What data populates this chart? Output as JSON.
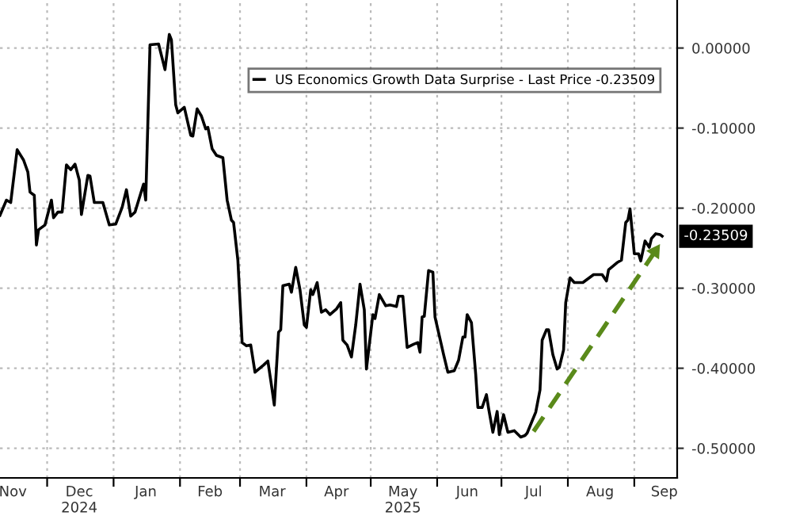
{
  "chart_data": {
    "type": "line",
    "series": [
      {
        "name": "US Economics Growth Data Surprise - Last Price -0.23509",
        "color": "#000000",
        "x": [
          "2024-11-09",
          "2024-11-12",
          "2024-11-14",
          "2024-11-17",
          "2024-11-20",
          "2024-11-22",
          "2024-11-23",
          "2024-11-25",
          "2024-11-26",
          "2024-11-27",
          "2024-11-30",
          "2024-12-03",
          "2024-12-04",
          "2024-12-06",
          "2024-12-08",
          "2024-12-10",
          "2024-12-12",
          "2024-12-14",
          "2024-12-16",
          "2024-12-17",
          "2024-12-20",
          "2024-12-21",
          "2024-12-23",
          "2024-12-27",
          "2024-12-30",
          "2025-01-02",
          "2025-01-05",
          "2025-01-07",
          "2025-01-09",
          "2025-01-11",
          "2025-01-15",
          "2025-01-16",
          "2025-01-18",
          "2025-01-22",
          "2025-01-25",
          "2025-01-27",
          "2025-01-28",
          "2025-01-30",
          "2025-01-31",
          "2025-02-03",
          "2025-02-06",
          "2025-02-07",
          "2025-02-09",
          "2025-02-11",
          "2025-02-13",
          "2025-02-14",
          "2025-02-16",
          "2025-02-18",
          "2025-02-21",
          "2025-02-23",
          "2025-02-25",
          "2025-02-26",
          "2025-02-28",
          "2025-03-02",
          "2025-03-04",
          "2025-03-06",
          "2025-03-08",
          "2025-03-12",
          "2025-03-14",
          "2025-03-16",
          "2025-03-17",
          "2025-03-19",
          "2025-03-20",
          "2025-03-21",
          "2025-03-24",
          "2025-03-25",
          "2025-03-27",
          "2025-03-29",
          "2025-03-31",
          "2025-04-01",
          "2025-04-03",
          "2025-04-04",
          "2025-04-06",
          "2025-04-08",
          "2025-04-10",
          "2025-04-12",
          "2025-04-15",
          "2025-04-17",
          "2025-04-18",
          "2025-04-20",
          "2025-04-22",
          "2025-04-24",
          "2025-04-26",
          "2025-04-28",
          "2025-04-29",
          "2025-05-02",
          "2025-05-03",
          "2025-05-05",
          "2025-05-08",
          "2025-05-10",
          "2025-05-13",
          "2025-05-14",
          "2025-05-16",
          "2025-05-18",
          "2025-05-21",
          "2025-05-23",
          "2025-05-24",
          "2025-05-25",
          "2025-05-26",
          "2025-05-28",
          "2025-05-30",
          "2025-05-31",
          "2025-06-03",
          "2025-06-04",
          "2025-06-06",
          "2025-06-09",
          "2025-06-11",
          "2025-06-13",
          "2025-06-14",
          "2025-06-15",
          "2025-06-17",
          "2025-06-19",
          "2025-06-20",
          "2025-06-22",
          "2025-06-24",
          "2025-06-25",
          "2025-06-27",
          "2025-06-29",
          "2025-06-30",
          "2025-07-02",
          "2025-07-04",
          "2025-07-07",
          "2025-07-10",
          "2025-07-12",
          "2025-07-13",
          "2025-07-15",
          "2025-07-17",
          "2025-07-19",
          "2025-07-20",
          "2025-07-22",
          "2025-07-23",
          "2025-07-25",
          "2025-07-27",
          "2025-07-28",
          "2025-07-30",
          "2025-07-31",
          "2025-08-02",
          "2025-08-04",
          "2025-08-08",
          "2025-08-13",
          "2025-08-17",
          "2025-08-19",
          "2025-08-20",
          "2025-08-24",
          "2025-08-26",
          "2025-08-28",
          "2025-08-29",
          "2025-08-30",
          "2025-09-01",
          "2025-09-03",
          "2025-09-04",
          "2025-09-06",
          "2025-09-08",
          "2025-09-09",
          "2025-09-11",
          "2025-09-13",
          "2025-09-14"
        ],
        "values": [
          -0.209,
          -0.19,
          -0.193,
          -0.127,
          -0.14,
          -0.155,
          -0.18,
          -0.184,
          -0.246,
          -0.227,
          -0.221,
          -0.19,
          -0.212,
          -0.205,
          -0.205,
          -0.146,
          -0.152,
          -0.145,
          -0.165,
          -0.208,
          -0.159,
          -0.16,
          -0.193,
          -0.193,
          -0.221,
          -0.22,
          -0.199,
          -0.177,
          -0.21,
          -0.205,
          -0.17,
          -0.19,
          0.004,
          0.005,
          -0.027,
          0.017,
          0.01,
          -0.071,
          -0.081,
          -0.074,
          -0.109,
          -0.11,
          -0.076,
          -0.085,
          -0.101,
          -0.099,
          -0.126,
          -0.134,
          -0.137,
          -0.19,
          -0.215,
          -0.218,
          -0.265,
          -0.368,
          -0.372,
          -0.371,
          -0.405,
          -0.396,
          -0.391,
          -0.427,
          -0.446,
          -0.355,
          -0.352,
          -0.297,
          -0.295,
          -0.305,
          -0.274,
          -0.302,
          -0.346,
          -0.349,
          -0.302,
          -0.308,
          -0.293,
          -0.33,
          -0.327,
          -0.333,
          -0.326,
          -0.318,
          -0.365,
          -0.371,
          -0.386,
          -0.346,
          -0.295,
          -0.327,
          -0.401,
          -0.333,
          -0.338,
          -0.308,
          -0.322,
          -0.321,
          -0.323,
          -0.31,
          -0.31,
          -0.374,
          -0.37,
          -0.368,
          -0.38,
          -0.336,
          -0.335,
          -0.278,
          -0.28,
          -0.336,
          -0.371,
          -0.383,
          -0.405,
          -0.403,
          -0.39,
          -0.361,
          -0.361,
          -0.333,
          -0.343,
          -0.408,
          -0.449,
          -0.449,
          -0.433,
          -0.45,
          -0.48,
          -0.454,
          -0.483,
          -0.458,
          -0.48,
          -0.478,
          -0.486,
          -0.484,
          -0.481,
          -0.468,
          -0.455,
          -0.427,
          -0.365,
          -0.352,
          -0.352,
          -0.383,
          -0.401,
          -0.399,
          -0.377,
          -0.318,
          -0.287,
          -0.293,
          -0.293,
          -0.283,
          -0.283,
          -0.291,
          -0.277,
          -0.268,
          -0.265,
          -0.218,
          -0.215,
          -0.201,
          -0.257,
          -0.257,
          -0.266,
          -0.241,
          -0.249,
          -0.238,
          -0.232,
          -0.233,
          -0.23509
        ]
      },
      {
        "color": "#5a8a1a",
        "line_style": "dashed",
        "x": [
          "2025-07-16",
          "2025-09-13"
        ],
        "values": [
          -0.479,
          -0.245
        ]
      }
    ],
    "xlim": [
      "2024-11-09",
      "2025-09-21"
    ],
    "xticks": [
      {
        "value": "2024-11-15",
        "label": "Nov"
      },
      {
        "value": "2024-12-01",
        "label": null
      },
      {
        "value": "2024-12-16",
        "label": "Dec\n2024"
      },
      {
        "value": "2025-01-01",
        "label": null
      },
      {
        "value": "2025-01-16",
        "label": "Jan"
      },
      {
        "value": "2025-02-01",
        "label": null
      },
      {
        "value": "2025-02-15",
        "label": "Feb"
      },
      {
        "value": "2025-03-01",
        "label": null
      },
      {
        "value": "2025-03-16",
        "label": "Mar"
      },
      {
        "value": "2025-04-01",
        "label": null
      },
      {
        "value": "2025-04-15",
        "label": "Apr"
      },
      {
        "value": "2025-05-01",
        "label": null
      },
      {
        "value": "2025-05-16",
        "label": "May\n2025"
      },
      {
        "value": "2025-06-01",
        "label": null
      },
      {
        "value": "2025-06-15",
        "label": "Jun"
      },
      {
        "value": "2025-07-01",
        "label": null
      },
      {
        "value": "2025-07-16",
        "label": "Jul"
      },
      {
        "value": "2025-08-01",
        "label": null
      },
      {
        "value": "2025-08-16",
        "label": "Aug"
      },
      {
        "value": "2025-09-01",
        "label": null
      },
      {
        "value": "2025-09-15",
        "label": "Sep"
      }
    ],
    "ylim": [
      -0.537,
      0.06
    ],
    "yticks": [
      {
        "value": 0,
        "label": "0.00000"
      },
      {
        "value": -0.1,
        "label": "-0.10000"
      },
      {
        "value": -0.2,
        "label": "-0.20000"
      },
      {
        "value": -0.3,
        "label": "-0.30000"
      },
      {
        "value": -0.4,
        "label": "-0.40000"
      },
      {
        "value": -0.5,
        "label": "-0.50000"
      }
    ],
    "annotations": [
      {
        "text": "-0.23509",
        "x": "2025-09-14",
        "y": -0.23509
      }
    ],
    "grid": true,
    "legend": "top right"
  }
}
